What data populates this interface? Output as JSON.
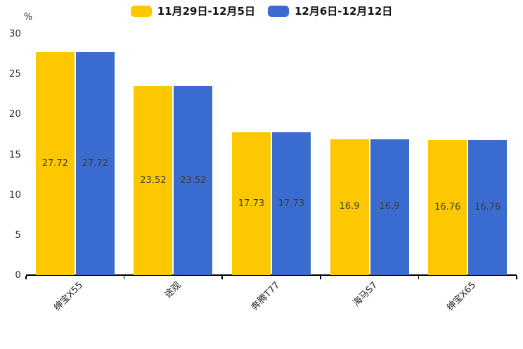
{
  "chart_data": {
    "type": "bar",
    "title": "",
    "unit_label": "%",
    "categories": [
      "绅宝X55",
      "途观",
      "奔腾T77",
      "海马S7",
      "绅宝X65"
    ],
    "series": [
      {
        "name": "11月29日-12月5日",
        "color": "#FDC800",
        "values": [
          27.72,
          23.52,
          17.73,
          16.9,
          16.76
        ]
      },
      {
        "name": "12月6日-12月12日",
        "color": "#3A6BCE",
        "values": [
          27.72,
          23.52,
          17.73,
          16.9,
          16.76
        ]
      }
    ],
    "ylim": [
      0,
      30
    ],
    "yticks": [
      0,
      5,
      10,
      15,
      20,
      25,
      30
    ],
    "grid": false,
    "legend_position": "top",
    "value_label_color": "#3d3d3d",
    "axis_color": "#000000",
    "tick_label_color": "#333333"
  }
}
